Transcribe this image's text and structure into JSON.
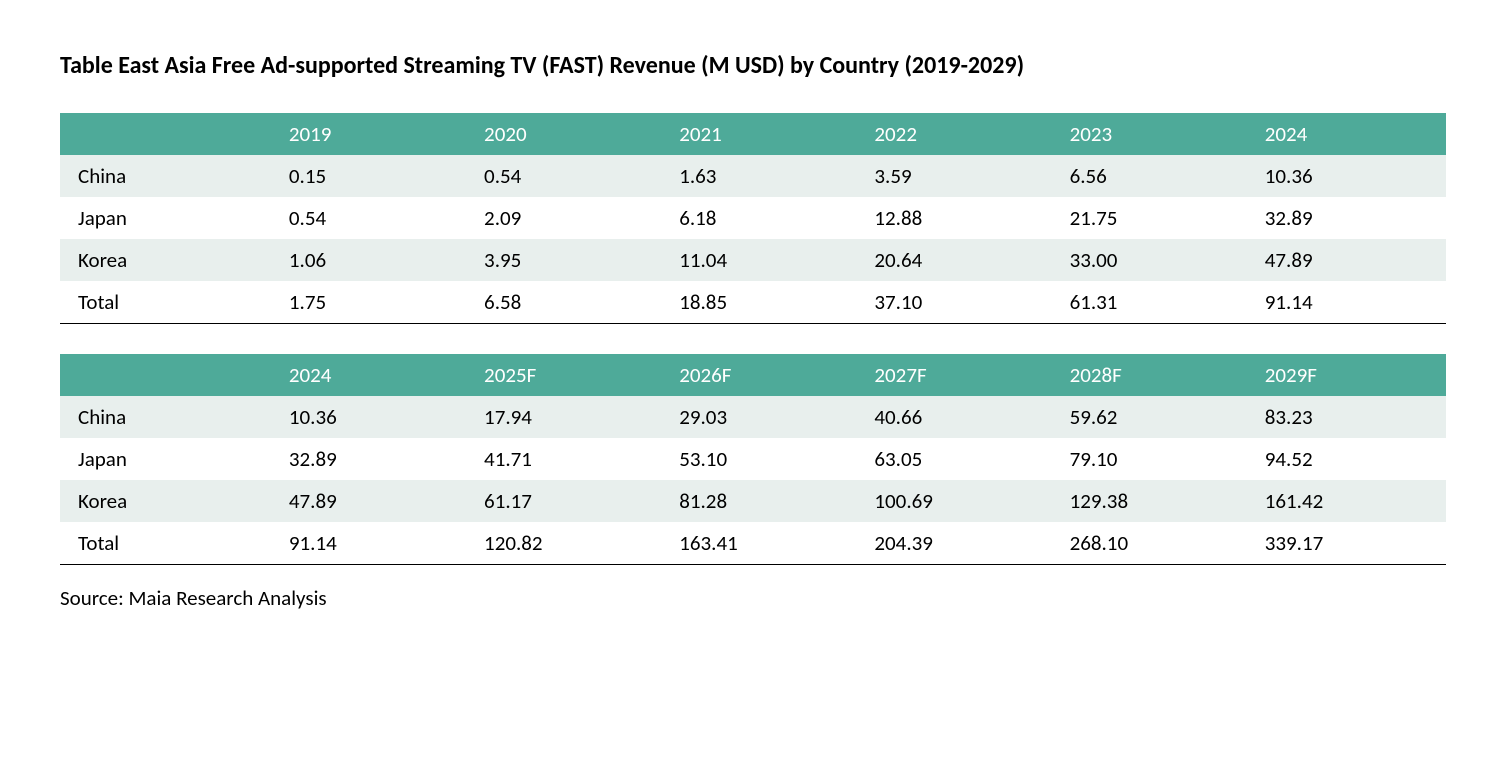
{
  "title": "Table East Asia Free Ad-supported Streaming TV (FAST) Revenue (M USD) by Country (2019-2029)",
  "title_fontsize": 24,
  "source": "Source: Maia Research Analysis",
  "source_fontsize": 21,
  "body_fontsize": 21,
  "colors": {
    "header_bg": "#4eaa99",
    "header_text": "#ffffff",
    "row_even_bg": "#e8efed",
    "row_odd_bg": "#ffffff",
    "text": "#000000",
    "border_bottom": "#000000"
  },
  "table1": {
    "columns": [
      "",
      "2019",
      "2020",
      "2021",
      "2022",
      "2023",
      "2024"
    ],
    "rows": [
      [
        "China",
        "0.15",
        "0.54",
        "1.63",
        "3.59",
        "6.56",
        "10.36"
      ],
      [
        "Japan",
        "0.54",
        "2.09",
        "6.18",
        "12.88",
        "21.75",
        "32.89"
      ],
      [
        "Korea",
        "1.06",
        "3.95",
        "11.04",
        "20.64",
        "33.00",
        "47.89"
      ],
      [
        "Total",
        "1.75",
        "6.58",
        "18.85",
        "37.10",
        "61.31",
        "91.14"
      ]
    ]
  },
  "table2": {
    "columns": [
      "",
      "2024",
      "2025F",
      "2026F",
      "2027F",
      "2028F",
      "2029F"
    ],
    "rows": [
      [
        "China",
        "10.36",
        "17.94",
        "29.03",
        "40.66",
        "59.62",
        "83.23"
      ],
      [
        "Japan",
        "32.89",
        "41.71",
        "53.10",
        "63.05",
        "79.10",
        "94.52"
      ],
      [
        "Korea",
        "47.89",
        "61.17",
        "81.28",
        "100.69",
        "129.38",
        "161.42"
      ],
      [
        "Total",
        "91.14",
        "120.82",
        "163.41",
        "204.39",
        "268.10",
        "339.17"
      ]
    ]
  }
}
